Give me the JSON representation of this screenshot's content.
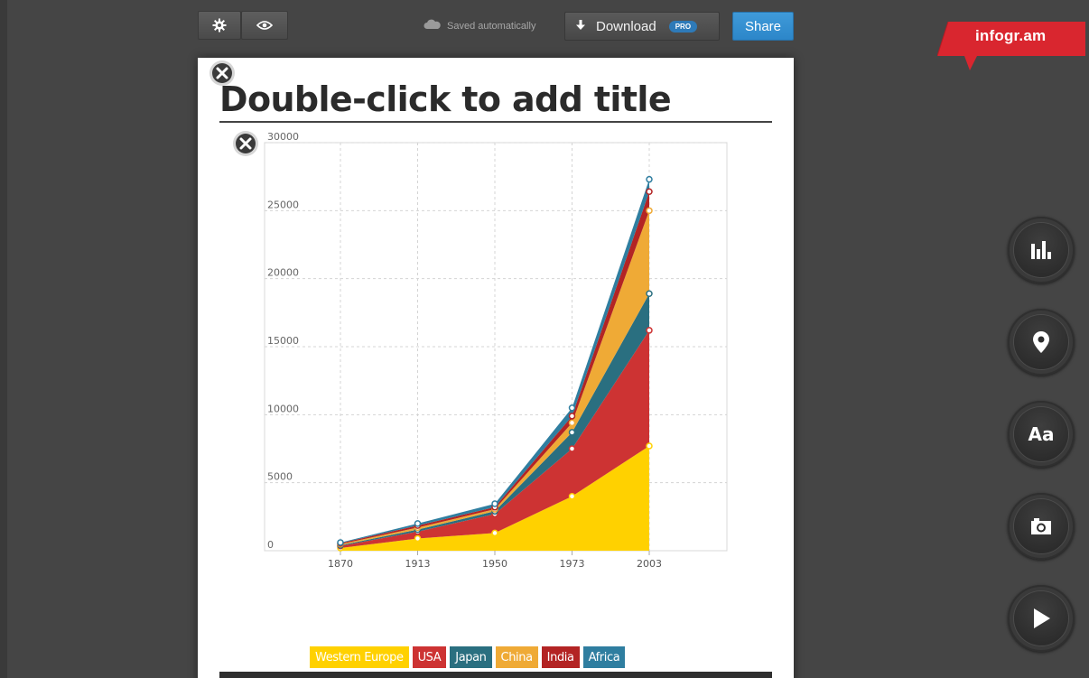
{
  "toolbar": {
    "settings_icon": "gear-icon",
    "preview_icon": "eye-icon",
    "saved_text": "Saved automatically",
    "download_label": "Download",
    "pro_badge": "PRO",
    "share_label": "Share"
  },
  "brand": {
    "name": "infogr.am",
    "color": "#d9262f"
  },
  "canvas": {
    "title_placeholder": "Double-click to add title"
  },
  "side_tools": [
    {
      "name": "chart-tool",
      "icon": "bar-chart-icon"
    },
    {
      "name": "map-tool",
      "icon": "map-pin-icon"
    },
    {
      "name": "text-tool",
      "icon": "text-icon",
      "label": "Aa"
    },
    {
      "name": "image-tool",
      "icon": "camera-icon"
    },
    {
      "name": "video-tool",
      "icon": "play-icon"
    }
  ],
  "chart_data": {
    "type": "area",
    "stacked": true,
    "title": "",
    "xlabel": "",
    "ylabel": "",
    "x": [
      "1870",
      "1913",
      "1950",
      "1973",
      "2003"
    ],
    "ylim": [
      0,
      30000
    ],
    "yticks": [
      "0",
      "5000",
      "10000",
      "15000",
      "20000",
      "25000",
      "30000"
    ],
    "grid": true,
    "legend_position": "bottom",
    "series": [
      {
        "name": "Western Europe",
        "color": "#ffd100",
        "values": [
          200,
          900,
          1300,
          4000,
          7700
        ]
      },
      {
        "name": "USA",
        "color": "#cd3333",
        "values": [
          150,
          500,
          1400,
          3500,
          8500
        ]
      },
      {
        "name": "Japan",
        "color": "#2a6f80",
        "values": [
          50,
          150,
          200,
          1200,
          2700
        ]
      },
      {
        "name": "China",
        "color": "#efaa36",
        "values": [
          80,
          150,
          150,
          700,
          6100
        ]
      },
      {
        "name": "India",
        "color": "#b32424",
        "values": [
          70,
          150,
          150,
          500,
          1400
        ]
      },
      {
        "name": "Africa",
        "color": "#2f7ea0",
        "values": [
          50,
          150,
          250,
          600,
          900
        ]
      }
    ]
  }
}
